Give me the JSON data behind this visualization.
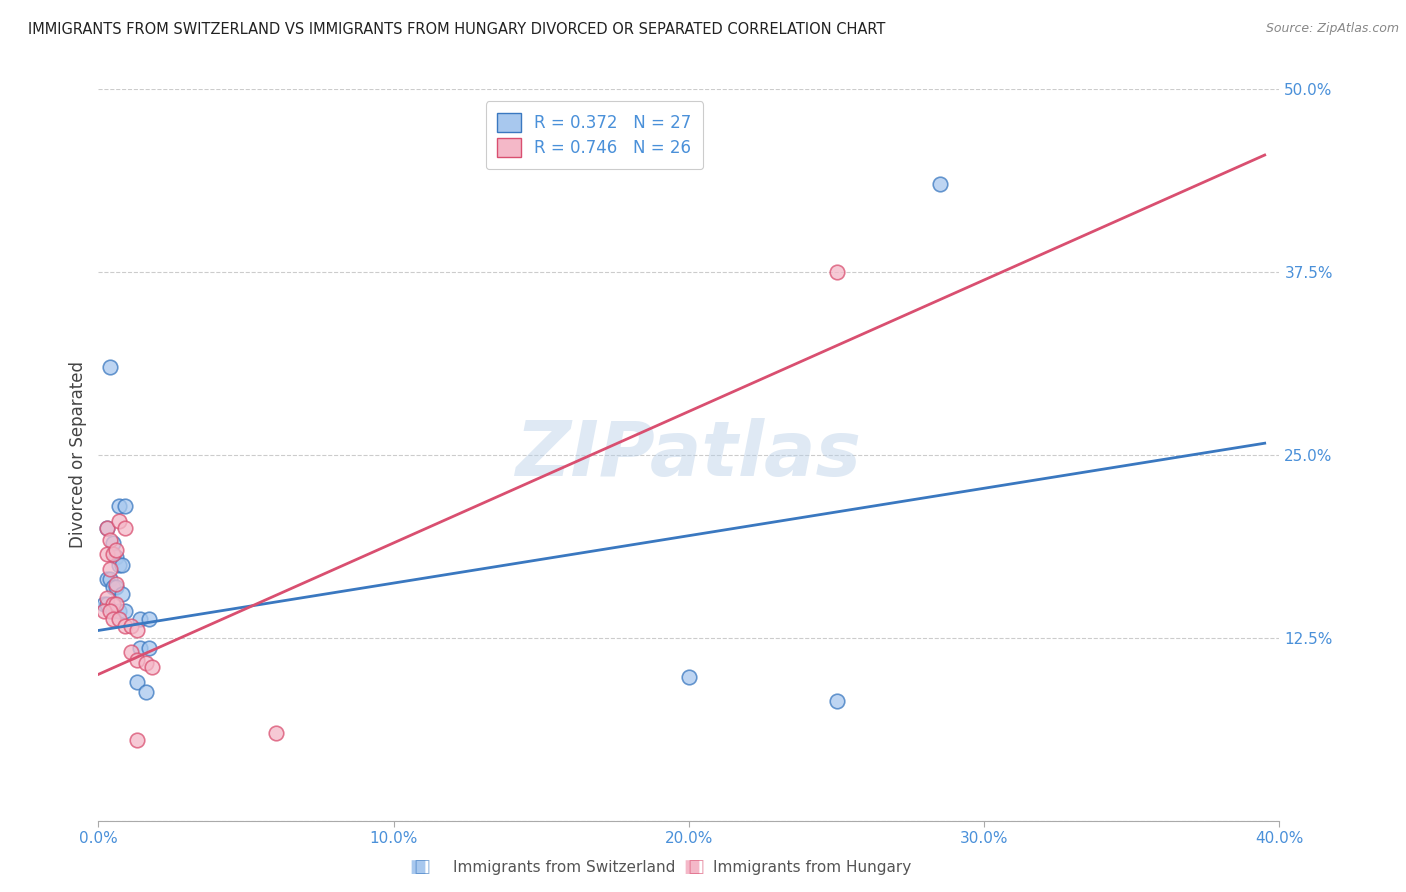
{
  "title": "IMMIGRANTS FROM SWITZERLAND VS IMMIGRANTS FROM HUNGARY DIVORCED OR SEPARATED CORRELATION CHART",
  "source": "Source: ZipAtlas.com",
  "label_color": "#4a90d9",
  "ylabel": "Divorced or Separated",
  "xlim": [
    0.0,
    0.4
  ],
  "ylim": [
    0.0,
    0.5
  ],
  "xticks": [
    0.0,
    0.1,
    0.2,
    0.3,
    0.4
  ],
  "yticks": [
    0.0,
    0.125,
    0.25,
    0.375,
    0.5
  ],
  "xtick_labels": [
    "0.0%",
    "10.0%",
    "20.0%",
    "30.0%",
    "40.0%"
  ],
  "ytick_labels": [
    "",
    "12.5%",
    "25.0%",
    "37.5%",
    "50.0%"
  ],
  "watermark": "ZIPatlas",
  "legend_r1": "R = 0.372",
  "legend_n1": "N = 27",
  "legend_r2": "R = 0.746",
  "legend_n2": "N = 26",
  "legend_label1": "Immigrants from Switzerland",
  "legend_label2": "Immigrants from Hungary",
  "color_blue": "#a8c8ee",
  "color_pink": "#f4b8c8",
  "line_blue": "#3a78c0",
  "line_pink": "#d94f70",
  "blue_points": [
    [
      0.004,
      0.31
    ],
    [
      0.007,
      0.215
    ],
    [
      0.009,
      0.215
    ],
    [
      0.003,
      0.2
    ],
    [
      0.005,
      0.19
    ],
    [
      0.006,
      0.18
    ],
    [
      0.007,
      0.175
    ],
    [
      0.008,
      0.175
    ],
    [
      0.003,
      0.165
    ],
    [
      0.004,
      0.165
    ],
    [
      0.005,
      0.16
    ],
    [
      0.006,
      0.16
    ],
    [
      0.008,
      0.155
    ],
    [
      0.002,
      0.148
    ],
    [
      0.003,
      0.148
    ],
    [
      0.005,
      0.143
    ],
    [
      0.007,
      0.143
    ],
    [
      0.009,
      0.143
    ],
    [
      0.014,
      0.138
    ],
    [
      0.017,
      0.138
    ],
    [
      0.014,
      0.118
    ],
    [
      0.017,
      0.118
    ],
    [
      0.013,
      0.095
    ],
    [
      0.016,
      0.088
    ],
    [
      0.2,
      0.098
    ],
    [
      0.25,
      0.082
    ],
    [
      0.285,
      0.435
    ]
  ],
  "pink_points": [
    [
      0.003,
      0.2
    ],
    [
      0.004,
      0.192
    ],
    [
      0.003,
      0.182
    ],
    [
      0.005,
      0.182
    ],
    [
      0.006,
      0.185
    ],
    [
      0.004,
      0.172
    ],
    [
      0.006,
      0.162
    ],
    [
      0.007,
      0.205
    ],
    [
      0.009,
      0.2
    ],
    [
      0.003,
      0.152
    ],
    [
      0.005,
      0.148
    ],
    [
      0.006,
      0.148
    ],
    [
      0.002,
      0.143
    ],
    [
      0.004,
      0.143
    ],
    [
      0.005,
      0.138
    ],
    [
      0.007,
      0.138
    ],
    [
      0.009,
      0.133
    ],
    [
      0.011,
      0.133
    ],
    [
      0.013,
      0.13
    ],
    [
      0.011,
      0.115
    ],
    [
      0.013,
      0.11
    ],
    [
      0.016,
      0.108
    ],
    [
      0.018,
      0.105
    ],
    [
      0.013,
      0.055
    ],
    [
      0.06,
      0.06
    ],
    [
      0.25,
      0.375
    ]
  ],
  "blue_line_x": [
    0.0,
    0.395
  ],
  "blue_line_y": [
    0.13,
    0.258
  ],
  "pink_line_x": [
    0.0,
    0.395
  ],
  "pink_line_y": [
    0.1,
    0.455
  ]
}
